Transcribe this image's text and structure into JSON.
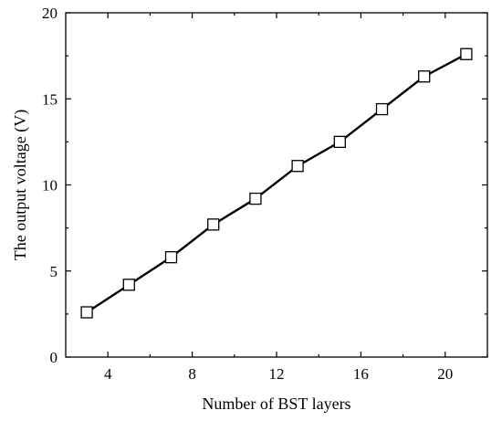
{
  "chart_data": {
    "type": "line",
    "xlabel": "Number of BST layers",
    "ylabel": "The output voltage (V)",
    "xlim": [
      2,
      22
    ],
    "ylim": [
      0,
      20
    ],
    "xticks": [
      4,
      8,
      12,
      16,
      20
    ],
    "yticks": [
      0,
      5,
      10,
      15,
      20
    ],
    "grid": false,
    "marker": "open-square",
    "line_color": "#000000",
    "series": [
      {
        "x": [
          3,
          5,
          7,
          9,
          11,
          13,
          15,
          17,
          19,
          21
        ],
        "values": [
          2.6,
          4.2,
          5.8,
          7.7,
          9.2,
          11.1,
          12.5,
          14.4,
          16.3,
          17.6
        ]
      }
    ]
  }
}
